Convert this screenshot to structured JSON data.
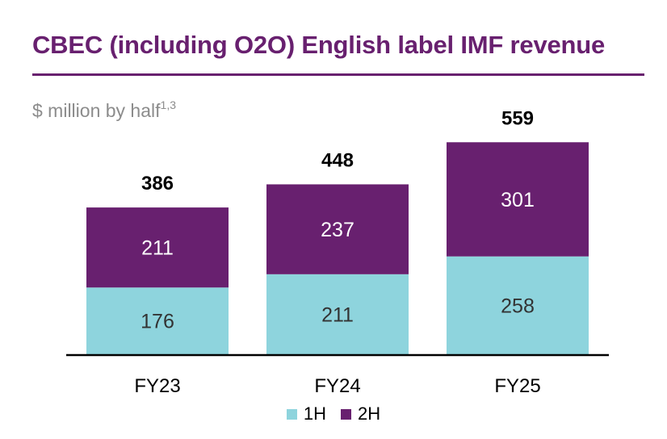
{
  "title": "CBEC (including O2O) English label IMF revenue",
  "subtitle": "$ million by half",
  "subtitle_sup": "1,3",
  "colors": {
    "h1": "#8ed4dd",
    "h2": "#68206f",
    "title": "#68206f"
  },
  "chart_data": {
    "type": "bar",
    "stacked": true,
    "categories": [
      "FY23",
      "FY24",
      "FY25"
    ],
    "series": [
      {
        "name": "1H",
        "values": [
          176,
          211,
          258
        ]
      },
      {
        "name": "2H",
        "values": [
          211,
          237,
          301
        ]
      }
    ],
    "totals": [
      386,
      448,
      559
    ],
    "title": "CBEC (including O2O) English label IMF revenue",
    "ylabel": "$ million by half",
    "legend": "bottom-center",
    "grid": false
  }
}
